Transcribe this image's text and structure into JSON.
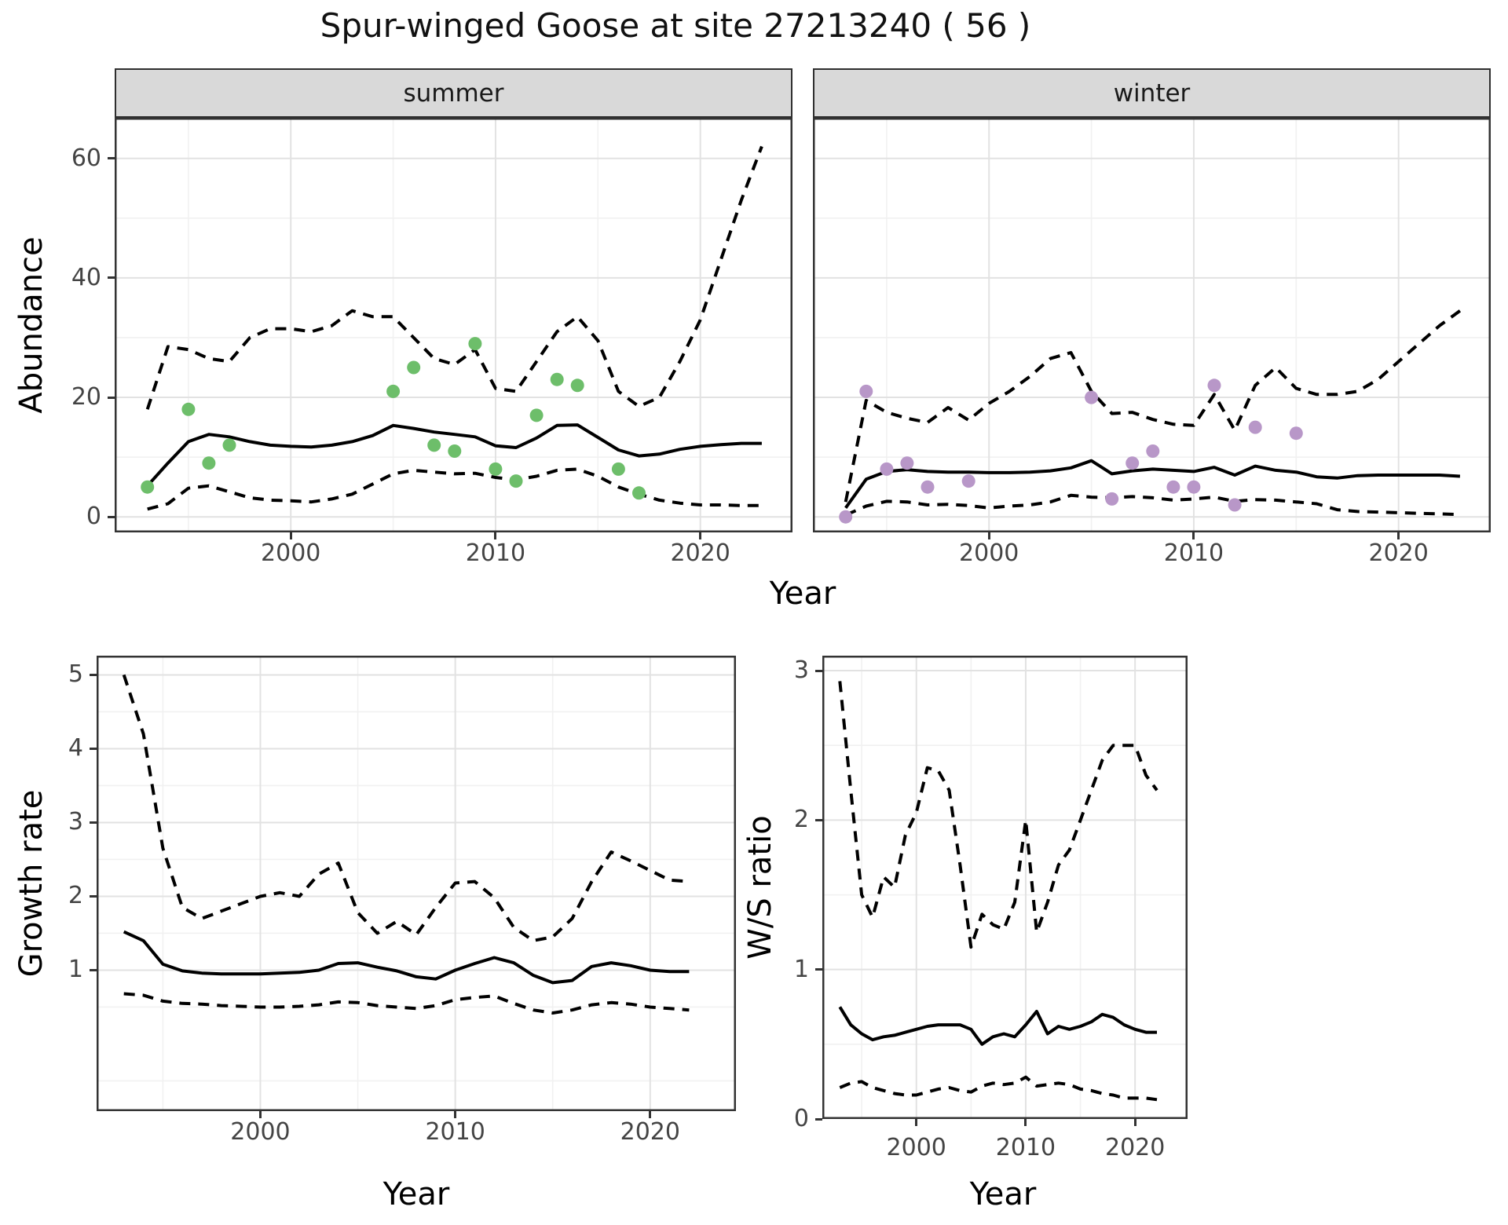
{
  "title": "Spur-winged Goose at site 27213240 ( 56 )",
  "facets": {
    "summer": "summer",
    "winter": "winter"
  },
  "axis_titles": {
    "abundance": "Abundance",
    "year_top": "Year",
    "growth": "Growth rate",
    "year_growth": "Year",
    "ws": "W/S ratio",
    "year_ws": "Year"
  },
  "colors": {
    "summer_points": "#6dbe6a",
    "winter_points": "#b897c8",
    "line": "#000000",
    "grid_major": "#e2e2e2",
    "grid_minor": "#f1f1f1",
    "strip_bg": "#d9d9d9",
    "panel_border": "#333333",
    "tick_label": "#444444"
  },
  "chart_data": [
    {
      "id": "abundance-summer",
      "type": "line",
      "panel": "summer",
      "facet_label": "summer",
      "xlabel": "Year",
      "ylabel": "Abundance",
      "xlim": [
        1991.4,
        2024.5
      ],
      "ylim": [
        -2.6,
        66.8
      ],
      "x_ticks": [
        2000,
        2010,
        2020
      ],
      "x_minor": [
        1995,
        2005,
        2015
      ],
      "y_ticks": [
        0,
        20,
        40,
        60
      ],
      "y_minor": [
        10,
        30,
        50
      ],
      "years": [
        1993,
        1994,
        1995,
        1996,
        1997,
        1998,
        1999,
        2000,
        2001,
        2002,
        2003,
        2004,
        2005,
        2006,
        2007,
        2008,
        2009,
        2010,
        2011,
        2012,
        2013,
        2014,
        2015,
        2016,
        2017,
        2018,
        2019,
        2020,
        2021,
        2022,
        2023
      ],
      "series": [
        {
          "name": "median",
          "style": "solid",
          "values": [
            5.2,
            9,
            12.6,
            13.8,
            13.4,
            12.6,
            12,
            11.8,
            11.7,
            12,
            12.6,
            13.6,
            15.3,
            14.8,
            14.2,
            13.8,
            13.4,
            11.9,
            11.6,
            13.2,
            15.3,
            15.4,
            13.3,
            11.2,
            10.2,
            10.5,
            11.3,
            11.8,
            12.1,
            12.3,
            12.3
          ]
        },
        {
          "name": "upper_ci",
          "style": "dashed",
          "values": [
            18,
            28.5,
            28,
            26.5,
            26,
            30,
            31.5,
            31.5,
            31,
            32,
            34.5,
            33.5,
            33.5,
            30,
            26.5,
            25.5,
            28,
            21.5,
            21,
            26,
            31,
            33.5,
            29.5,
            21,
            18.5,
            20,
            26,
            33,
            43,
            53,
            62
          ]
        },
        {
          "name": "lower_ci",
          "style": "dashed",
          "values": [
            1.3,
            2.2,
            4.8,
            5.2,
            4.2,
            3.2,
            2.8,
            2.7,
            2.5,
            3,
            3.8,
            5.5,
            7.2,
            7.8,
            7.5,
            7.2,
            7.3,
            6.6,
            6.2,
            6.8,
            7.8,
            8,
            6.8,
            5,
            3.8,
            2.8,
            2.3,
            2,
            2,
            1.9,
            1.9
          ]
        }
      ],
      "points": {
        "name": "observed-counts-summer",
        "color": "#6dbe6a",
        "x": [
          1993,
          1995,
          1996,
          1997,
          2005,
          2006,
          2007,
          2008,
          2009,
          2010,
          2011,
          2012,
          2013,
          2014,
          2016,
          2017
        ],
        "y": [
          5,
          18,
          9,
          12,
          21,
          25,
          12,
          11,
          29,
          8,
          6,
          17,
          23,
          22,
          8,
          4
        ]
      }
    },
    {
      "id": "abundance-winter",
      "type": "line",
      "panel": "winter",
      "facet_label": "winter",
      "xlabel": "Year",
      "ylabel": "Abundance",
      "xlim": [
        1991.4,
        2024.5
      ],
      "ylim": [
        -2.6,
        66.8
      ],
      "x_ticks": [
        2000,
        2010,
        2020
      ],
      "x_minor": [
        1995,
        2005,
        2015
      ],
      "y_ticks": [
        0,
        20,
        40,
        60
      ],
      "y_minor": [
        10,
        30,
        50
      ],
      "years": [
        1993,
        1994,
        1995,
        1996,
        1997,
        1998,
        1999,
        2000,
        2001,
        2002,
        2003,
        2004,
        2005,
        2006,
        2007,
        2008,
        2009,
        2010,
        2011,
        2012,
        2013,
        2014,
        2015,
        2016,
        2017,
        2018,
        2019,
        2020,
        2021,
        2022,
        2023
      ],
      "series": [
        {
          "name": "median",
          "style": "solid",
          "values": [
            1.5,
            6.3,
            7.6,
            7.9,
            7.6,
            7.5,
            7.5,
            7.4,
            7.4,
            7.5,
            7.7,
            8.2,
            9.4,
            7.2,
            7.7,
            8,
            7.8,
            7.6,
            8.3,
            7,
            8.5,
            7.8,
            7.5,
            6.7,
            6.5,
            6.9,
            7,
            7,
            7,
            7,
            6.8
          ]
        },
        {
          "name": "upper_ci",
          "style": "dashed",
          "values": [
            2.5,
            19.5,
            17.5,
            16.5,
            15.8,
            18.3,
            16.2,
            19,
            21,
            23.5,
            26.5,
            27.5,
            21,
            17.3,
            17.5,
            16.3,
            15.5,
            15.3,
            20.5,
            14.5,
            22,
            25,
            21.5,
            20.5,
            20.5,
            21,
            23,
            26,
            29,
            32,
            34.5
          ]
        },
        {
          "name": "lower_ci",
          "style": "dashed",
          "values": [
            0.3,
            1.8,
            2.6,
            2.5,
            2,
            2.1,
            1.9,
            1.5,
            1.8,
            2,
            2.5,
            3.6,
            3.3,
            3.2,
            3.4,
            3.2,
            2.8,
            3,
            3.3,
            2.6,
            2.9,
            2.8,
            2.5,
            2.2,
            1.2,
            0.9,
            0.8,
            0.7,
            0.6,
            0.5,
            0.4
          ]
        }
      ],
      "points": {
        "name": "observed-counts-winter",
        "color": "#b897c8",
        "x": [
          1993,
          1994,
          1995,
          1996,
          1997,
          1999,
          2005,
          2006,
          2007,
          2008,
          2009,
          2010,
          2011,
          2012,
          2013,
          2015
        ],
        "y": [
          0,
          21,
          8,
          9,
          5,
          6,
          20,
          3,
          9,
          11,
          5,
          5,
          22,
          2,
          15,
          14
        ]
      }
    },
    {
      "id": "growth-rate",
      "type": "line",
      "panel": "growth",
      "xlabel": "Year",
      "ylabel": "Growth rate",
      "xlim": [
        1991.6,
        2024.4
      ],
      "ylim": [
        -0.91,
        5.26
      ],
      "x_ticks": [
        2000,
        2010,
        2020
      ],
      "x_minor": [
        1995,
        2005,
        2015
      ],
      "y_ticks": [
        1,
        2,
        3,
        4,
        5
      ],
      "y_minor": [
        -0.5,
        0.5,
        1.5,
        2.5,
        3.5,
        4.5
      ],
      "years": [
        1993,
        1994,
        1995,
        1996,
        1997,
        1998,
        1999,
        2000,
        2001,
        2002,
        2003,
        2004,
        2005,
        2006,
        2007,
        2008,
        2009,
        2010,
        2011,
        2012,
        2013,
        2014,
        2015,
        2016,
        2017,
        2018,
        2019,
        2020,
        2021,
        2022
      ],
      "series": [
        {
          "name": "median",
          "style": "solid",
          "values": [
            1.52,
            1.4,
            1.08,
            0.99,
            0.96,
            0.95,
            0.95,
            0.95,
            0.96,
            0.97,
            1,
            1.09,
            1.1,
            1.04,
            0.99,
            0.91,
            0.88,
            1,
            1.09,
            1.17,
            1.1,
            0.93,
            0.83,
            0.86,
            1.05,
            1.1,
            1.06,
            1,
            0.98,
            0.98
          ]
        },
        {
          "name": "upper_ci",
          "style": "dashed",
          "values": [
            5,
            4.2,
            2.65,
            1.85,
            1.7,
            1.8,
            1.9,
            2,
            2.05,
            2,
            2.3,
            2.45,
            1.78,
            1.5,
            1.66,
            1.48,
            1.85,
            2.18,
            2.2,
            1.98,
            1.58,
            1.4,
            1.45,
            1.7,
            2.2,
            2.6,
            2.48,
            2.35,
            2.22,
            2.2
          ]
        },
        {
          "name": "lower_ci",
          "style": "dashed",
          "values": [
            0.68,
            0.66,
            0.58,
            0.55,
            0.54,
            0.52,
            0.51,
            0.5,
            0.5,
            0.51,
            0.53,
            0.57,
            0.56,
            0.52,
            0.5,
            0.48,
            0.52,
            0.6,
            0.63,
            0.65,
            0.55,
            0.46,
            0.42,
            0.46,
            0.53,
            0.56,
            0.54,
            0.5,
            0.48,
            0.46
          ]
        }
      ]
    },
    {
      "id": "ws-ratio",
      "type": "line",
      "panel": "ws",
      "xlabel": "Year",
      "ylabel": "W/S ratio",
      "xlim": [
        1991.4,
        2024.8
      ],
      "ylim": [
        0,
        3.1
      ],
      "x_ticks": [
        2000,
        2010,
        2020
      ],
      "x_minor": [
        1995,
        2005,
        2015
      ],
      "y_ticks": [
        0,
        1,
        2,
        3
      ],
      "y_minor": [
        0.5,
        1.5,
        2.5
      ],
      "years": [
        1993,
        1994,
        1995,
        1996,
        1997,
        1998,
        1999,
        2000,
        2001,
        2002,
        2003,
        2004,
        2005,
        2006,
        2007,
        2008,
        2009,
        2010,
        2011,
        2012,
        2013,
        2014,
        2015,
        2016,
        2017,
        2018,
        2019,
        2020,
        2021,
        2022
      ],
      "series": [
        {
          "name": "median",
          "style": "solid",
          "values": [
            0.75,
            0.63,
            0.57,
            0.53,
            0.55,
            0.56,
            0.58,
            0.6,
            0.62,
            0.63,
            0.63,
            0.63,
            0.6,
            0.5,
            0.55,
            0.57,
            0.55,
            0.63,
            0.72,
            0.57,
            0.62,
            0.6,
            0.62,
            0.65,
            0.7,
            0.68,
            0.63,
            0.6,
            0.58,
            0.58
          ]
        },
        {
          "name": "upper_ci",
          "style": "dashed",
          "values": [
            2.93,
            2.2,
            1.5,
            1.35,
            1.62,
            1.55,
            1.9,
            2.05,
            2.35,
            2.33,
            2.2,
            1.7,
            1.15,
            1.37,
            1.3,
            1.27,
            1.45,
            2,
            1.25,
            1.45,
            1.7,
            1.8,
            2,
            2.2,
            2.4,
            2.5,
            2.5,
            2.5,
            2.3,
            2.2
          ]
        },
        {
          "name": "lower_ci",
          "style": "dashed",
          "values": [
            0.21,
            0.24,
            0.25,
            0.21,
            0.19,
            0.17,
            0.16,
            0.16,
            0.18,
            0.2,
            0.21,
            0.19,
            0.18,
            0.22,
            0.24,
            0.23,
            0.24,
            0.28,
            0.22,
            0.23,
            0.24,
            0.23,
            0.2,
            0.19,
            0.17,
            0.16,
            0.14,
            0.14,
            0.14,
            0.13
          ]
        }
      ]
    }
  ]
}
